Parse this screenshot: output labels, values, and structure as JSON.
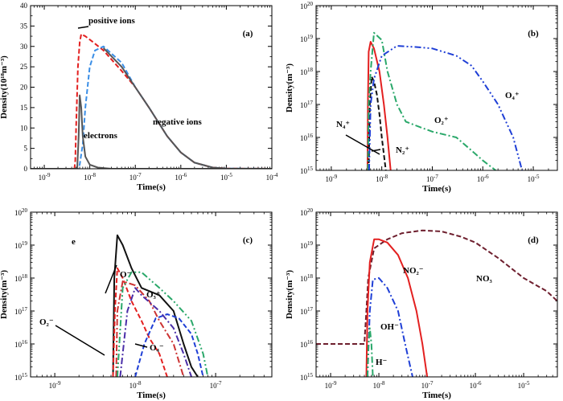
{
  "chart_data": [
    {
      "panel": "a",
      "label": "(a)",
      "type": "line",
      "x_scale": "log",
      "y_scale": "linear",
      "xlim": [
        5e-10,
        0.0001
      ],
      "ylim": [
        0,
        40
      ],
      "x_ticks": [
        1e-09,
        1e-08,
        1e-07,
        1e-06,
        1e-05,
        0.0001
      ],
      "y_ticks": [
        0,
        5,
        10,
        15,
        20,
        25,
        30,
        35,
        40
      ],
      "xlabel": "Time(s)",
      "ylabel": "Density(10¹⁸m⁻³)",
      "series": [
        {
          "name": "positive ions",
          "color": "#e32020",
          "dash": "dash",
          "points": [
            [
              5e-10,
              0
            ],
            [
              4.6e-09,
              0
            ],
            [
              4.8e-09,
              2
            ],
            [
              5e-09,
              10
            ],
            [
              5.5e-09,
              25
            ],
            [
              6e-09,
              31
            ],
            [
              6.5e-09,
              33
            ],
            [
              8e-09,
              32.5
            ],
            [
              1.2e-08,
              31
            ],
            [
              2e-08,
              29
            ],
            [
              5e-08,
              24
            ],
            [
              1e-07,
              20
            ],
            [
              2e-07,
              15
            ],
            [
              5e-07,
              8
            ],
            [
              1e-06,
              4
            ],
            [
              2e-06,
              1.5
            ],
            [
              5e-06,
              0.3
            ],
            [
              1e-05,
              0.05
            ],
            [
              0.0001,
              0
            ]
          ]
        },
        {
          "name": "negative ions",
          "color": "#3a8ee6",
          "dash": "dash",
          "points": [
            [
              5e-10,
              0
            ],
            [
              5.5e-09,
              0
            ],
            [
              6e-09,
              1
            ],
            [
              7e-09,
              6
            ],
            [
              8e-09,
              15
            ],
            [
              1e-08,
              25
            ],
            [
              1.3e-08,
              29
            ],
            [
              2e-08,
              30
            ],
            [
              5e-08,
              26
            ],
            [
              1e-07,
              20
            ],
            [
              2e-07,
              15
            ],
            [
              5e-07,
              8
            ],
            [
              1e-06,
              4
            ],
            [
              2e-06,
              1.5
            ],
            [
              5e-06,
              0.3
            ],
            [
              1e-05,
              0.05
            ],
            [
              0.0001,
              0
            ]
          ]
        },
        {
          "name": "negative ions (solid)",
          "color": "#555555",
          "dash": "solid",
          "points": [
            [
              2e-08,
              29.6
            ],
            [
              5e-08,
              25
            ],
            [
              1e-07,
              20
            ],
            [
              2e-07,
              15
            ],
            [
              5e-07,
              8
            ],
            [
              1e-06,
              4
            ],
            [
              2e-06,
              1.5
            ],
            [
              5e-06,
              0.3
            ],
            [
              1e-05,
              0.05
            ],
            [
              0.0001,
              0
            ]
          ]
        },
        {
          "name": "electrons",
          "color": "#555555",
          "dash": "solid",
          "points": [
            [
              5e-10,
              0
            ],
            [
              5.3e-09,
              0
            ],
            [
              5.7e-09,
              8
            ],
            [
              6e-09,
              18
            ],
            [
              6.5e-09,
              15
            ],
            [
              7e-09,
              8
            ],
            [
              8e-09,
              3
            ],
            [
              1e-08,
              1
            ],
            [
              1.5e-08,
              0.3
            ],
            [
              3e-08,
              0
            ],
            [
              0.0001,
              0
            ]
          ]
        }
      ],
      "annotations": [
        "positive ions",
        "negative ions",
        "electrons"
      ]
    },
    {
      "panel": "b",
      "label": "(b)",
      "type": "line",
      "x_scale": "log",
      "y_scale": "log",
      "xlim": [
        5e-10,
        3e-05
      ],
      "ylim": [
        1000000000000000.0,
        1e+20
      ],
      "x_ticks": [
        1e-09,
        1e-08,
        1e-07,
        1e-06,
        1e-05
      ],
      "y_ticks": [
        1000000000000000.0,
        1e+16,
        1e+17,
        1e+18,
        1e+19,
        1e+20
      ],
      "xlabel": "Time(s)",
      "ylabel": "Density(m⁻³)",
      "series": [
        {
          "name": "N₂⁺",
          "color": "#e32020",
          "dash": "solid",
          "points": [
            [
              5.2e-09,
              1000000000000000.0
            ],
            [
              5.3e-09,
              1e+17
            ],
            [
              5.5e-09,
              4e+18
            ],
            [
              6e-09,
              8e+18
            ],
            [
              7e-09,
              5e+18
            ],
            [
              9e-09,
              1e+18
            ],
            [
              1.1e-08,
              1e+17
            ],
            [
              1.3e-08,
              1e+16
            ],
            [
              1.5e-08,
              1000000000000000.0
            ]
          ]
        },
        {
          "name": "N₄⁺",
          "color": "#111111",
          "dash": "dash",
          "points": [
            [
              5.5e-09,
              1000000000000000.0
            ],
            [
              5.8e-09,
              1e+17
            ],
            [
              6.3e-09,
              7e+17
            ],
            [
              7e-09,
              5e+17
            ],
            [
              8e-09,
              2e+17
            ],
            [
              9e-09,
              5e+16
            ],
            [
              1e-08,
              1e+16
            ],
            [
              1.2e-08,
              1000000000000000.0
            ]
          ]
        },
        {
          "name": "O₂⁺",
          "color": "#2aa86a",
          "dash": "dashdot",
          "points": [
            [
              5.3e-09,
              1000000000000000.0
            ],
            [
              5.5e-09,
              1e+17
            ],
            [
              6e-09,
              1e+18
            ],
            [
              7e-09,
              1.5e+19
            ],
            [
              1e-08,
              9e+18
            ],
            [
              1.3e-08,
              1e+18
            ],
            [
              2e-08,
              1e+17
            ],
            [
              3e-08,
              3e+16
            ],
            [
              6e-08,
              2e+16
            ],
            [
              1e-07,
              1.5e+16
            ],
            [
              3e-07,
              1e+16
            ],
            [
              6e-07,
              4000000000000000.0
            ],
            [
              1e-06,
              2000000000000000.0
            ],
            [
              1.8e-06,
              1000000000000000.0
            ]
          ]
        },
        {
          "name": "O₄⁺",
          "color": "#1f3fd6",
          "dash": "dashdotdot",
          "points": [
            [
              5.6e-09,
              1000000000000000.0
            ],
            [
              6e-09,
              1e+17
            ],
            [
              7e-09,
              6e+17
            ],
            [
              1e-08,
              3e+18
            ],
            [
              2e-08,
              6e+18
            ],
            [
              5e-08,
              5.5e+18
            ],
            [
              1e-07,
              5e+18
            ],
            [
              3e-07,
              3e+18
            ],
            [
              6e-07,
              1.5e+18
            ],
            [
              1e-06,
              5e+17
            ],
            [
              2e-06,
              1e+17
            ],
            [
              4e-06,
              1e+16
            ],
            [
              6e-06,
              1000000000000000.0
            ]
          ]
        }
      ],
      "annotations": [
        "N₄⁺",
        "N₂⁺",
        "O₂⁺",
        "O₄⁺"
      ]
    },
    {
      "panel": "c",
      "label": "(c)",
      "type": "line",
      "x_scale": "log",
      "y_scale": "log",
      "xlim": [
        5e-10,
        5e-07
      ],
      "ylim": [
        1000000000000000.0,
        1e+20
      ],
      "x_ticks": [
        1e-09,
        1e-08,
        1e-07
      ],
      "y_ticks": [
        1000000000000000.0,
        1e+16,
        1e+17,
        1e+18,
        1e+19,
        1e+20
      ],
      "xlabel": "Time(s)",
      "ylabel": "Density(m⁻³)",
      "series": [
        {
          "name": "e",
          "color": "#111111",
          "dash": "solid",
          "points": [
            [
              5.3e-09,
              1000000000000000.0
            ],
            [
              5.5e-09,
              1e+18
            ],
            [
              6e-09,
              2e+19
            ],
            [
              7e-09,
              1e+19
            ],
            [
              9e-09,
              2e+18
            ],
            [
              1.2e-08,
              5e+17
            ],
            [
              2e-08,
              3e+17
            ],
            [
              3e-08,
              1e+17
            ],
            [
              4e-08,
              1e+16
            ],
            [
              5e-08,
              2000000000000000.0
            ],
            [
              6e-08,
              1000000000000000.0
            ]
          ]
        },
        {
          "name": "O₂⁻",
          "color": "#e32020",
          "dash": "dash",
          "points": [
            [
              5.3e-09,
              1000000000000000.0
            ],
            [
              5.6e-09,
              1e+17
            ],
            [
              6e-09,
              2e+18
            ],
            [
              7e-09,
              1e+18
            ],
            [
              9e-09,
              2e+17
            ],
            [
              1.2e-08,
              5e+16
            ],
            [
              1.5e-08,
              1.5e+16
            ],
            [
              2e-08,
              5000000000000000.0
            ],
            [
              2.5e-08,
              1000000000000000.0
            ]
          ]
        },
        {
          "name": "O⁻",
          "color": "#cc3333",
          "dash": "dashdot",
          "points": [
            [
              5.8e-09,
              1000000000000000.0
            ],
            [
              6e-09,
              1e+17
            ],
            [
              7e-09,
              8e+17
            ],
            [
              1e-08,
              6e+17
            ],
            [
              1.5e-08,
              2e+17
            ],
            [
              2e-08,
              5e+16
            ],
            [
              3e-08,
              1e+16
            ],
            [
              4e-08,
              1000000000000000.0
            ]
          ]
        },
        {
          "name": "O₃⁺",
          "color": "#2aa86a",
          "dash": "dashdotdot",
          "points": [
            [
              6e-09,
              1000000000000000.0
            ],
            [
              7e-09,
              5e+17
            ],
            [
              9e-09,
              1.5e+18
            ],
            [
              1.2e-08,
              1.5e+18
            ],
            [
              2e-08,
              5e+17
            ],
            [
              3e-08,
              2e+17
            ],
            [
              5e-08,
              5e+16
            ],
            [
              7e-08,
              5000000000000000.0
            ],
            [
              8e-08,
              1000000000000000.0
            ]
          ]
        },
        {
          "name": "O₄⁻",
          "color": "#1f3fd6",
          "dash": "dash",
          "points": [
            [
              1e-08,
              1000000000000000.0
            ],
            [
              1.3e-08,
              1e+16
            ],
            [
              1.8e-08,
              6e+16
            ],
            [
              2.5e-08,
              8e+16
            ],
            [
              3.5e-08,
              6e+16
            ],
            [
              5e-08,
              2e+16
            ],
            [
              6e-08,
              5000000000000000.0
            ],
            [
              7e-08,
              1000000000000000.0
            ]
          ]
        },
        {
          "name": "O₄⁻ (inner)",
          "color": "#4a2ea8",
          "dash": "dashdot",
          "points": [
            [
              6.5e-09,
              1000000000000000.0
            ],
            [
              8e-09,
              1e+17
            ],
            [
              1e-08,
              5e+17
            ],
            [
              1.2e-08,
              3e+17
            ],
            [
              2e-08,
              1e+17
            ],
            [
              3e-08,
              3e+16
            ],
            [
              4e-08,
              5000000000000000.0
            ],
            [
              5e-08,
              1000000000000000.0
            ]
          ]
        }
      ],
      "annotations": [
        "e",
        "O⁻",
        "O₃⁺",
        "O₂⁻",
        "O₄⁻"
      ]
    },
    {
      "panel": "d",
      "label": "(d)",
      "type": "line",
      "x_scale": "log",
      "y_scale": "log",
      "xlim": [
        5e-10,
        5e-05
      ],
      "ylim": [
        1000000000000000.0,
        1e+20
      ],
      "x_ticks": [
        1e-09,
        1e-08,
        1e-07,
        1e-06,
        1e-05
      ],
      "y_ticks": [
        1000000000000000.0,
        1e+16,
        1e+17,
        1e+18,
        1e+19,
        1e+20
      ],
      "xlabel": "Time(s)",
      "ylabel": "Density(m⁻³)",
      "series": [
        {
          "name": "NO₃⁻",
          "color": "#6e1f2e",
          "dash": "dash",
          "points": [
            [
              5e-10,
              1e+16
            ],
            [
              5e-09,
              1e+16
            ],
            [
              5.5e-09,
              1e+17
            ],
            [
              6e-09,
              1e+18
            ],
            [
              8e-09,
              8e+18
            ],
            [
              1.5e-08,
              1.5e+19
            ],
            [
              3e-08,
              2.3e+19
            ],
            [
              8e-08,
              2.8e+19
            ],
            [
              2e-07,
              2.6e+19
            ],
            [
              5e-07,
              1.8e+19
            ],
            [
              1e-06,
              1.2e+19
            ],
            [
              3e-06,
              4e+18
            ],
            [
              1e-05,
              1e+18
            ],
            [
              3e-05,
              4e+17
            ],
            [
              5e-05,
              2e+17
            ]
          ]
        },
        {
          "name": "NO₂⁻",
          "color": "#e32020",
          "dash": "solid",
          "points": [
            [
              5.5e-09,
              1000000000000000.0
            ],
            [
              5.8e-09,
              1e+17
            ],
            [
              6.5e-09,
              3e+18
            ],
            [
              8e-09,
              1.5e+19
            ],
            [
              1e-08,
              1.5e+19
            ],
            [
              1.5e-08,
              1.2e+19
            ],
            [
              2.5e-08,
              5e+18
            ],
            [
              4e-08,
              1e+18
            ],
            [
              6e-08,
              1e+17
            ],
            [
              8e-08,
              1e+16
            ],
            [
              1e-07,
              1000000000000000.0
            ]
          ]
        },
        {
          "name": "OH⁻",
          "color": "#1f3fd6",
          "dash": "dashdot",
          "points": [
            [
              5.8e-09,
              1000000000000000.0
            ],
            [
              6.5e-09,
              1e+17
            ],
            [
              7.5e-09,
              9e+17
            ],
            [
              1e-08,
              1e+18
            ],
            [
              1.5e-08,
              5e+17
            ],
            [
              2.5e-08,
              1e+17
            ],
            [
              3.5e-08,
              1e+16
            ],
            [
              5e-08,
              1000000000000000.0
            ]
          ]
        },
        {
          "name": "H⁻",
          "color": "#2aa86a",
          "dash": "dashdot",
          "points": [
            [
              5.8e-09,
              1000000000000000.0
            ],
            [
              6.1e-09,
              1e+16
            ],
            [
              6.5e-09,
              3e+16
            ],
            [
              7e-09,
              1e+16
            ],
            [
              7.5e-09,
              1000000000000000.0
            ]
          ]
        }
      ],
      "annotations": [
        "NO₂⁻",
        "NO₃",
        "OH⁻",
        "H⁻"
      ]
    }
  ]
}
